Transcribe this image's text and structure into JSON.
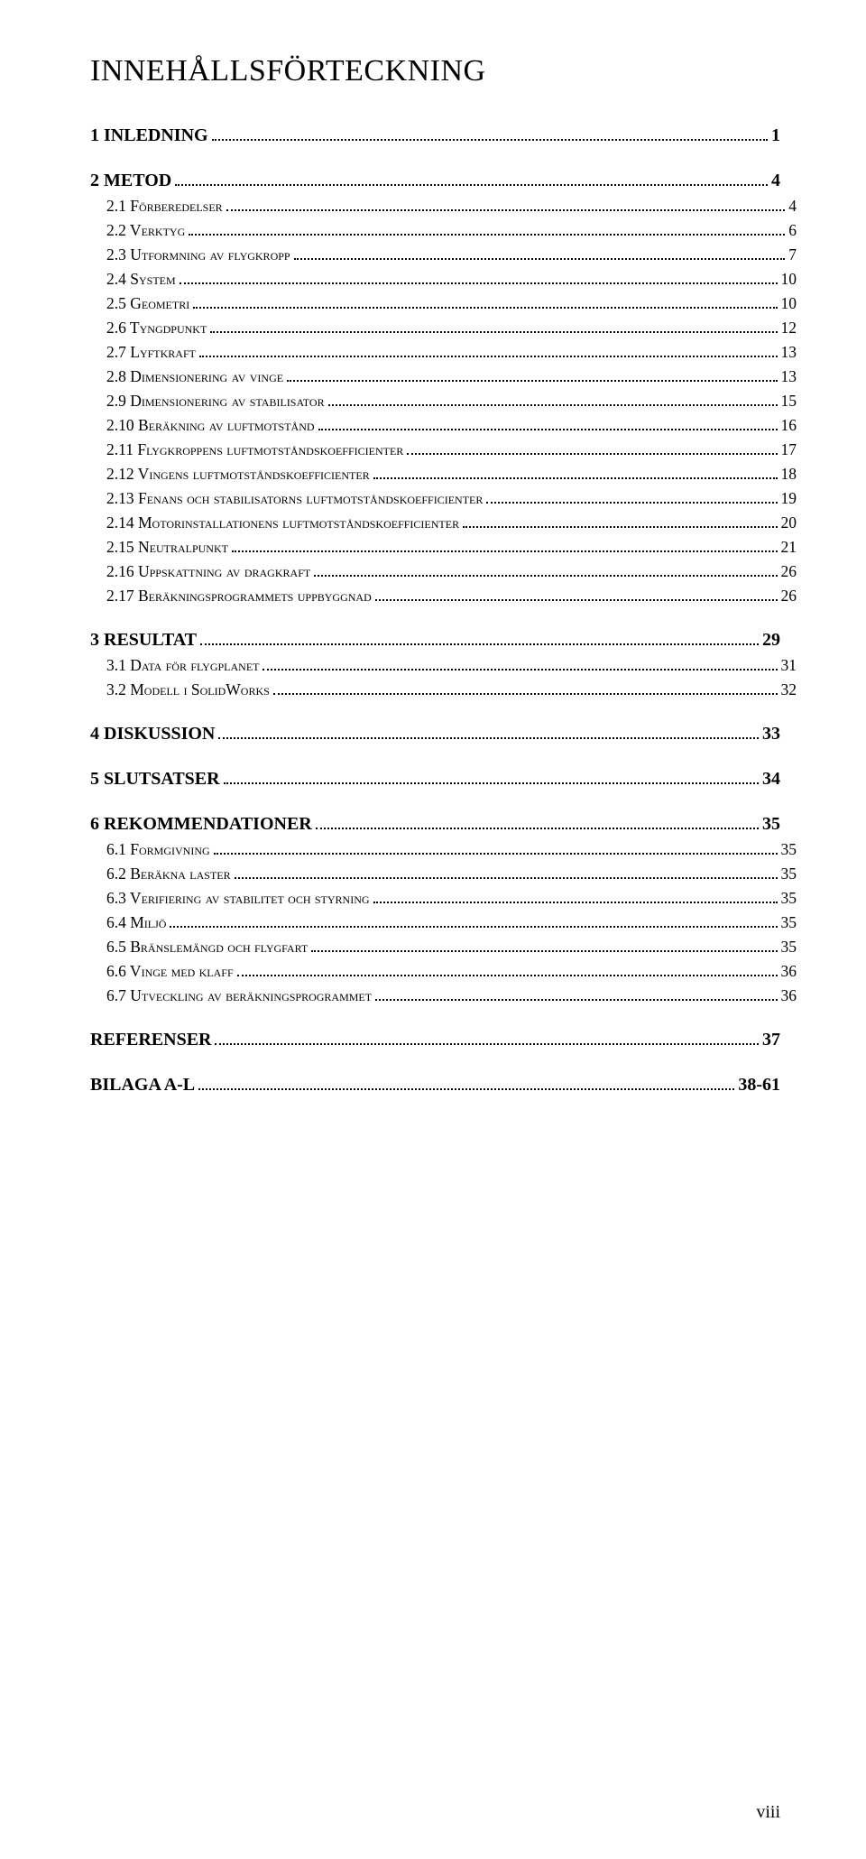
{
  "title": "INNEHÅLLSFÖRTECKNING",
  "page_number": "viii",
  "colors": {
    "background": "#ffffff",
    "text": "#000000",
    "leader": "#000000"
  },
  "typography": {
    "title_font": "Garamond / Times",
    "body_font": "Times New Roman",
    "title_size_pt": 26,
    "level0_size_pt": 15,
    "level1_size_pt": 13,
    "level0_weight": "bold",
    "level1_smallcaps": true
  },
  "toc": [
    {
      "level": 0,
      "label": "1    INLEDNING",
      "page": "1"
    },
    {
      "level": 0,
      "label": "2    METOD",
      "page": "4"
    },
    {
      "level": 1,
      "label": "2.1 Förberedelser",
      "page": "4"
    },
    {
      "level": 1,
      "label": "2.2 Verktyg",
      "page": "6"
    },
    {
      "level": 1,
      "label": "2.3 Utformning av flygkropp",
      "page": "7"
    },
    {
      "level": 1,
      "label": "2.4 System",
      "page": "10"
    },
    {
      "level": 1,
      "label": "2.5 Geometri",
      "page": "10"
    },
    {
      "level": 1,
      "label": "2.6 Tyngdpunkt",
      "page": "12"
    },
    {
      "level": 1,
      "label": "2.7 Lyftkraft",
      "page": "13"
    },
    {
      "level": 1,
      "label": "2.8 Dimensionering av vinge",
      "page": "13"
    },
    {
      "level": 1,
      "label": "2.9 Dimensionering av stabilisator",
      "page": "15"
    },
    {
      "level": 1,
      "label": "2.10 Beräkning av luftmotstånd",
      "page": "16"
    },
    {
      "level": 1,
      "label": "2.11 Flygkroppens luftmotståndskoefficienter",
      "page": "17"
    },
    {
      "level": 1,
      "label": "2.12 Vingens luftmotståndskoefficienter",
      "page": "18"
    },
    {
      "level": 1,
      "label": "2.13 Fenans och stabilisatorns luftmotståndskoefficienter",
      "page": "19"
    },
    {
      "level": 1,
      "label": "2.14 Motorinstallationens luftmotståndskoefficienter",
      "page": "20"
    },
    {
      "level": 1,
      "label": "2.15 Neutralpunkt",
      "page": "21"
    },
    {
      "level": 1,
      "label": "2.16 Uppskattning av dragkraft",
      "page": "26"
    },
    {
      "level": 1,
      "label": "2.17 Beräkningsprogrammets uppbyggnad",
      "page": "26"
    },
    {
      "level": 0,
      "label": "3    RESULTAT",
      "page": "29"
    },
    {
      "level": 1,
      "label": "3.1 Data för flygplanet",
      "page": "31"
    },
    {
      "level": 1,
      "label": "3.2 Modell i SolidWorks",
      "page": "32"
    },
    {
      "level": 0,
      "label": "4    DISKUSSION",
      "page": "33"
    },
    {
      "level": 0,
      "label": "5    SLUTSATSER",
      "page": "34"
    },
    {
      "level": 0,
      "label": "6    REKOMMENDATIONER",
      "page": "35"
    },
    {
      "level": 1,
      "label": "6.1 Formgivning",
      "page": "35"
    },
    {
      "level": 1,
      "label": "6.2 Beräkna laster",
      "page": "35"
    },
    {
      "level": 1,
      "label": "6.3 Verifiering av stabilitet och styrning",
      "page": "35"
    },
    {
      "level": 1,
      "label": "6.4 Miljö",
      "page": "35"
    },
    {
      "level": 1,
      "label": "6.5 Bränslemängd och flygfart",
      "page": "35"
    },
    {
      "level": 1,
      "label": "6.6 Vinge med klaff",
      "page": "36"
    },
    {
      "level": 1,
      "label": "6.7 Utveckling av beräkningsprogrammet",
      "page": "36"
    },
    {
      "level": 0,
      "label": "REFERENSER",
      "page": "37"
    },
    {
      "level": 0,
      "label": "BILAGA A-L",
      "page": "38-61"
    }
  ]
}
